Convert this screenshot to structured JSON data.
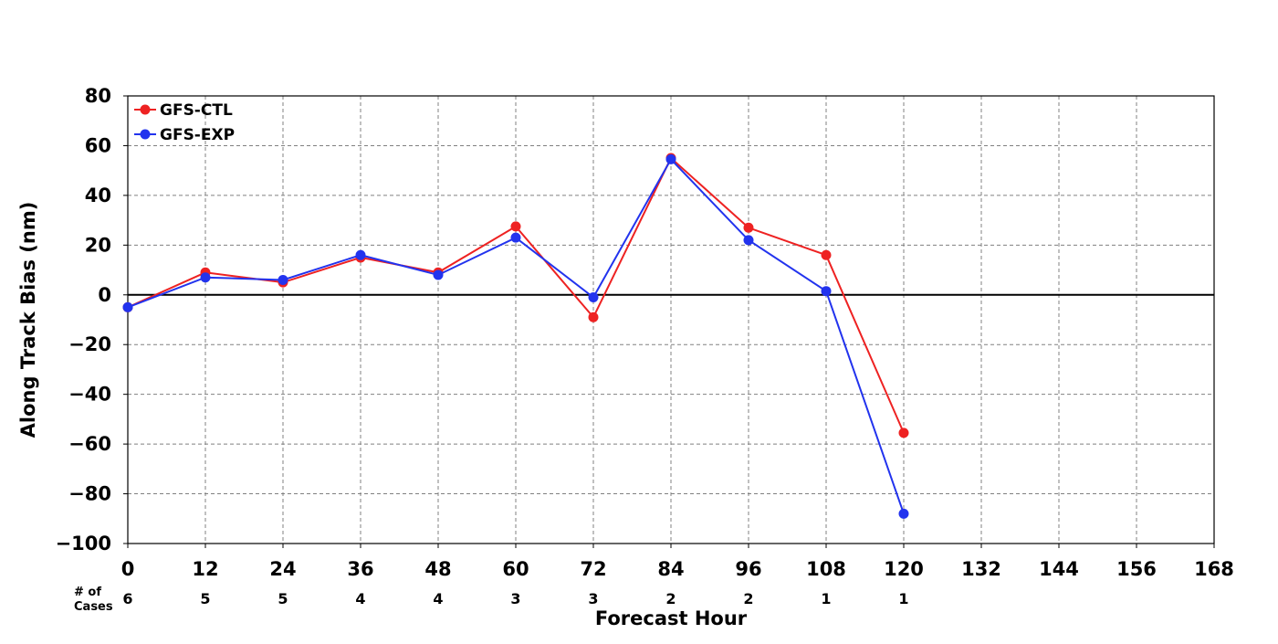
{
  "chart_data": {
    "type": "line",
    "xlabel": "Forecast Hour",
    "ylabel": "Along Track Bias (nm)",
    "xlim": [
      0,
      168
    ],
    "ylim": [
      -100,
      80
    ],
    "x_ticks": [
      "0",
      "12",
      "24",
      "36",
      "48",
      "60",
      "72",
      "84",
      "96",
      "108",
      "120",
      "132",
      "144",
      "156",
      "168"
    ],
    "y_ticks": [
      "80",
      "60",
      "40",
      "20",
      "0",
      "−20",
      "−40",
      "−60",
      "−80",
      "−100"
    ],
    "grid": true,
    "legend_position": "top-left",
    "cases_title_line1": "# of",
    "cases_title_line2": "Cases",
    "cases": [
      {
        "x": 0,
        "label": "6"
      },
      {
        "x": 12,
        "label": "5"
      },
      {
        "x": 24,
        "label": "5"
      },
      {
        "x": 36,
        "label": "4"
      },
      {
        "x": 48,
        "label": "4"
      },
      {
        "x": 60,
        "label": "3"
      },
      {
        "x": 72,
        "label": "3"
      },
      {
        "x": 84,
        "label": "2"
      },
      {
        "x": 96,
        "label": "2"
      },
      {
        "x": 108,
        "label": "1"
      },
      {
        "x": 120,
        "label": "1"
      }
    ],
    "x": [
      0,
      12,
      24,
      36,
      48,
      60,
      72,
      84,
      96,
      108,
      120
    ],
    "series": [
      {
        "name": "GFS-CTL",
        "color": "#ee2222",
        "values": [
          -5,
          9,
          5,
          15,
          9,
          27.5,
          -9,
          55,
          27,
          16,
          -55.5
        ]
      },
      {
        "name": "GFS-EXP",
        "color": "#2233ee",
        "values": [
          -5,
          7,
          6,
          16,
          8,
          23,
          -1,
          54.5,
          22,
          1.5,
          -88
        ]
      }
    ]
  }
}
